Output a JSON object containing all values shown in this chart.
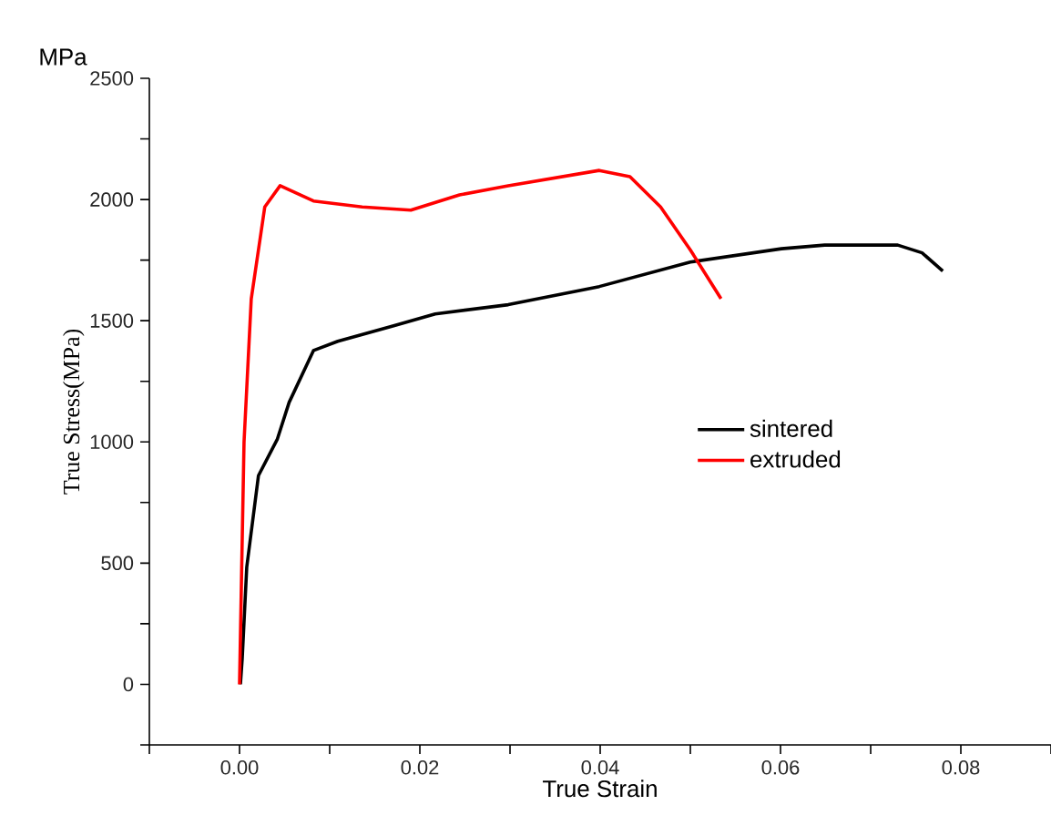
{
  "chart_data": {
    "type": "line",
    "xlabel": "True Strain",
    "ylabel": "True Stress(MPa)",
    "annotations": [
      "MPa"
    ],
    "xlim": [
      -0.01,
      0.09
    ],
    "ylim": [
      -250,
      2500
    ],
    "xticks": [
      {
        "value": -0.01,
        "label": null
      },
      {
        "value": 0,
        "label": "0.00"
      },
      {
        "value": 0.01,
        "label": null
      },
      0.02,
      {
        "value": 0.03,
        "label": null
      },
      0.04,
      {
        "value": 0.05,
        "label": null
      },
      0.06,
      {
        "value": 0.07,
        "label": null
      },
      0.08,
      {
        "value": 0.09,
        "label": null
      }
    ],
    "yticks": [
      {
        "value": -250,
        "label": null
      },
      0,
      {
        "value": 250,
        "label": null
      },
      500,
      {
        "value": 750,
        "label": null
      },
      1000,
      {
        "value": 1250,
        "label": null
      },
      1500,
      {
        "value": 1750,
        "label": null
      },
      2000,
      {
        "value": 2250,
        "label": null
      },
      2500
    ],
    "legend": "right",
    "grid": false,
    "marker": "none",
    "line_style": "solid",
    "series": [
      {
        "name": "sintered",
        "color": "#000000",
        "x": [
          0.0001,
          0.0003,
          0.0008,
          0.0021,
          0.0042,
          0.0055,
          0.0082,
          0.0109,
          0.017,
          0.0217,
          0.0298,
          0.0399,
          0.05,
          0.0601,
          0.0649,
          0.073,
          0.0757,
          0.078
        ],
        "values": [
          0,
          106,
          483,
          861,
          1012,
          1163,
          1377,
          1415,
          1478,
          1528,
          1566,
          1641,
          1742,
          1797,
          1812,
          1812,
          1780,
          1705
        ]
      },
      {
        "name": "extruded",
        "color": "#ff0000",
        "x": [
          0.0,
          0.0005,
          0.0013,
          0.0028,
          0.0045,
          0.0082,
          0.0136,
          0.019,
          0.0244,
          0.0298,
          0.0399,
          0.0433,
          0.0467,
          0.05,
          0.0534
        ],
        "values": [
          0,
          1000,
          1590,
          1969,
          2057,
          1994,
          1969,
          1956,
          2019,
          2057,
          2120,
          2094,
          1969,
          1792,
          1591
        ]
      }
    ]
  }
}
